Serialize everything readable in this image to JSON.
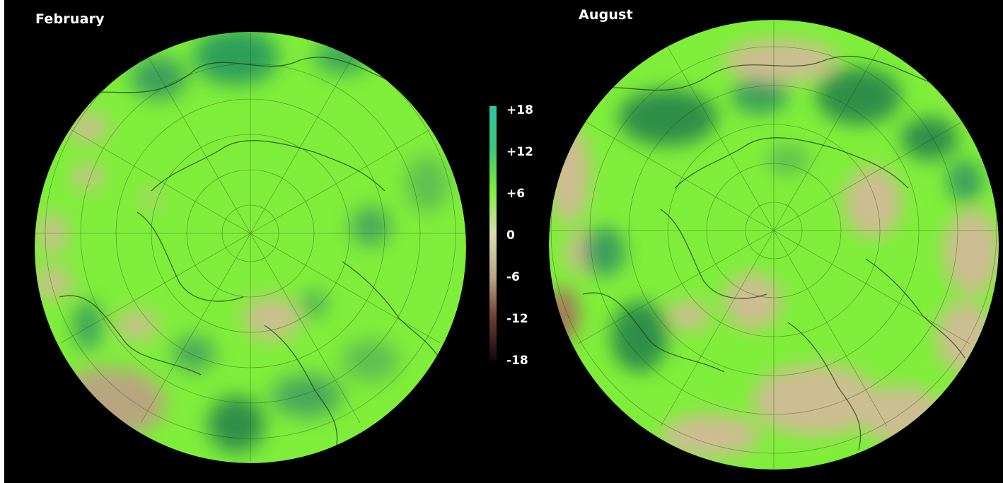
{
  "panels": [
    {
      "label": "February",
      "icon": "polar-stereographic-map-northern-hemisphere"
    },
    {
      "label": "August",
      "icon": "polar-stereographic-map-northern-hemisphere"
    }
  ],
  "colorbar": {
    "ticks": [
      "+18",
      "+12",
      "+6",
      "0",
      "-6",
      "-12",
      "-18"
    ],
    "colors": {
      "max": "#2fc7a0",
      "high": "#3ec77a",
      "mid_positive": "#7fee3a",
      "neutral": "#d8ddb0",
      "mid_negative": "#b9a888",
      "low": "#6b4030",
      "min": "#120512"
    }
  },
  "colors": {
    "background": "#000000",
    "map_base": "#7fee3a",
    "dark_green": "#2f8f4a",
    "tan": "#cdbd92",
    "graticule": "#1a3a10"
  }
}
